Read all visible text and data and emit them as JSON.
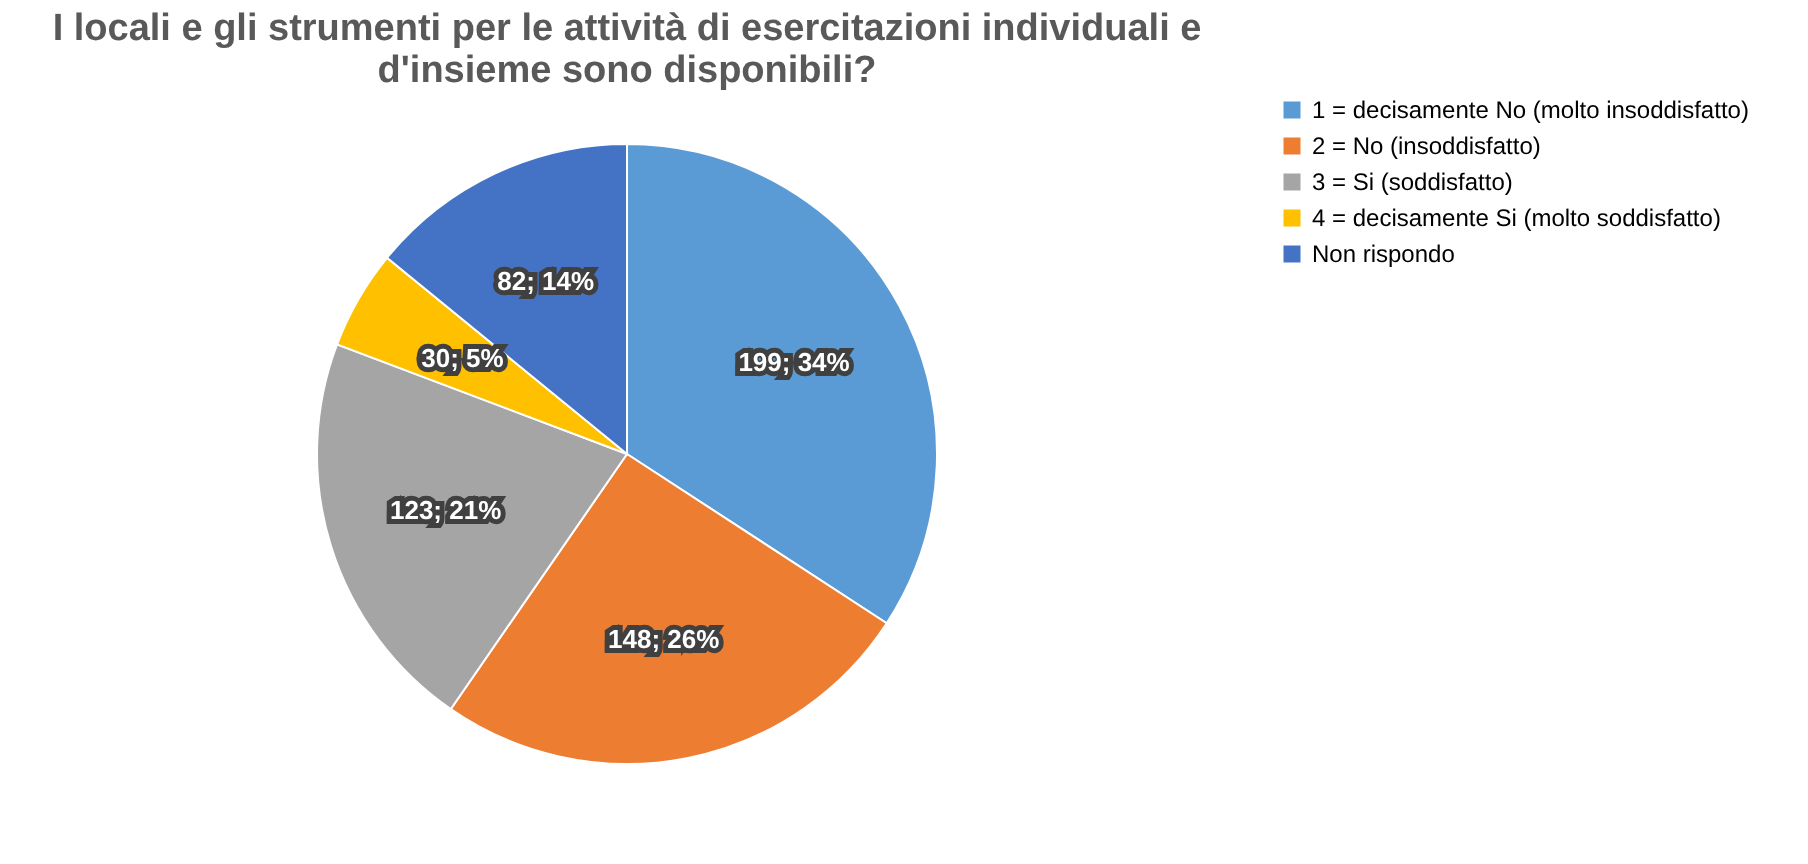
{
  "chart_data": {
    "type": "pie",
    "title": "I locali e gli strumenti per le attività di esercitazioni individuali e d'insieme sono disponibili?",
    "categories": [
      "1 = decisamente No (molto insoddisfatto)",
      "2 = No (insoddisfatto)",
      "3 = Si (soddisfatto)",
      "4 = decisamente Si (molto soddisfatto)",
      "Non rispondo"
    ],
    "values": [
      199,
      148,
      123,
      30,
      82
    ],
    "colors": [
      "#5b9bd5",
      "#ed7d31",
      "#a5a5a5",
      "#ffc000",
      "#4472c4"
    ],
    "value_labels": [
      "199; 34%",
      "148; 26%",
      "123; 21%",
      "30; 5%",
      "82; 14%"
    ],
    "legend": "right"
  }
}
